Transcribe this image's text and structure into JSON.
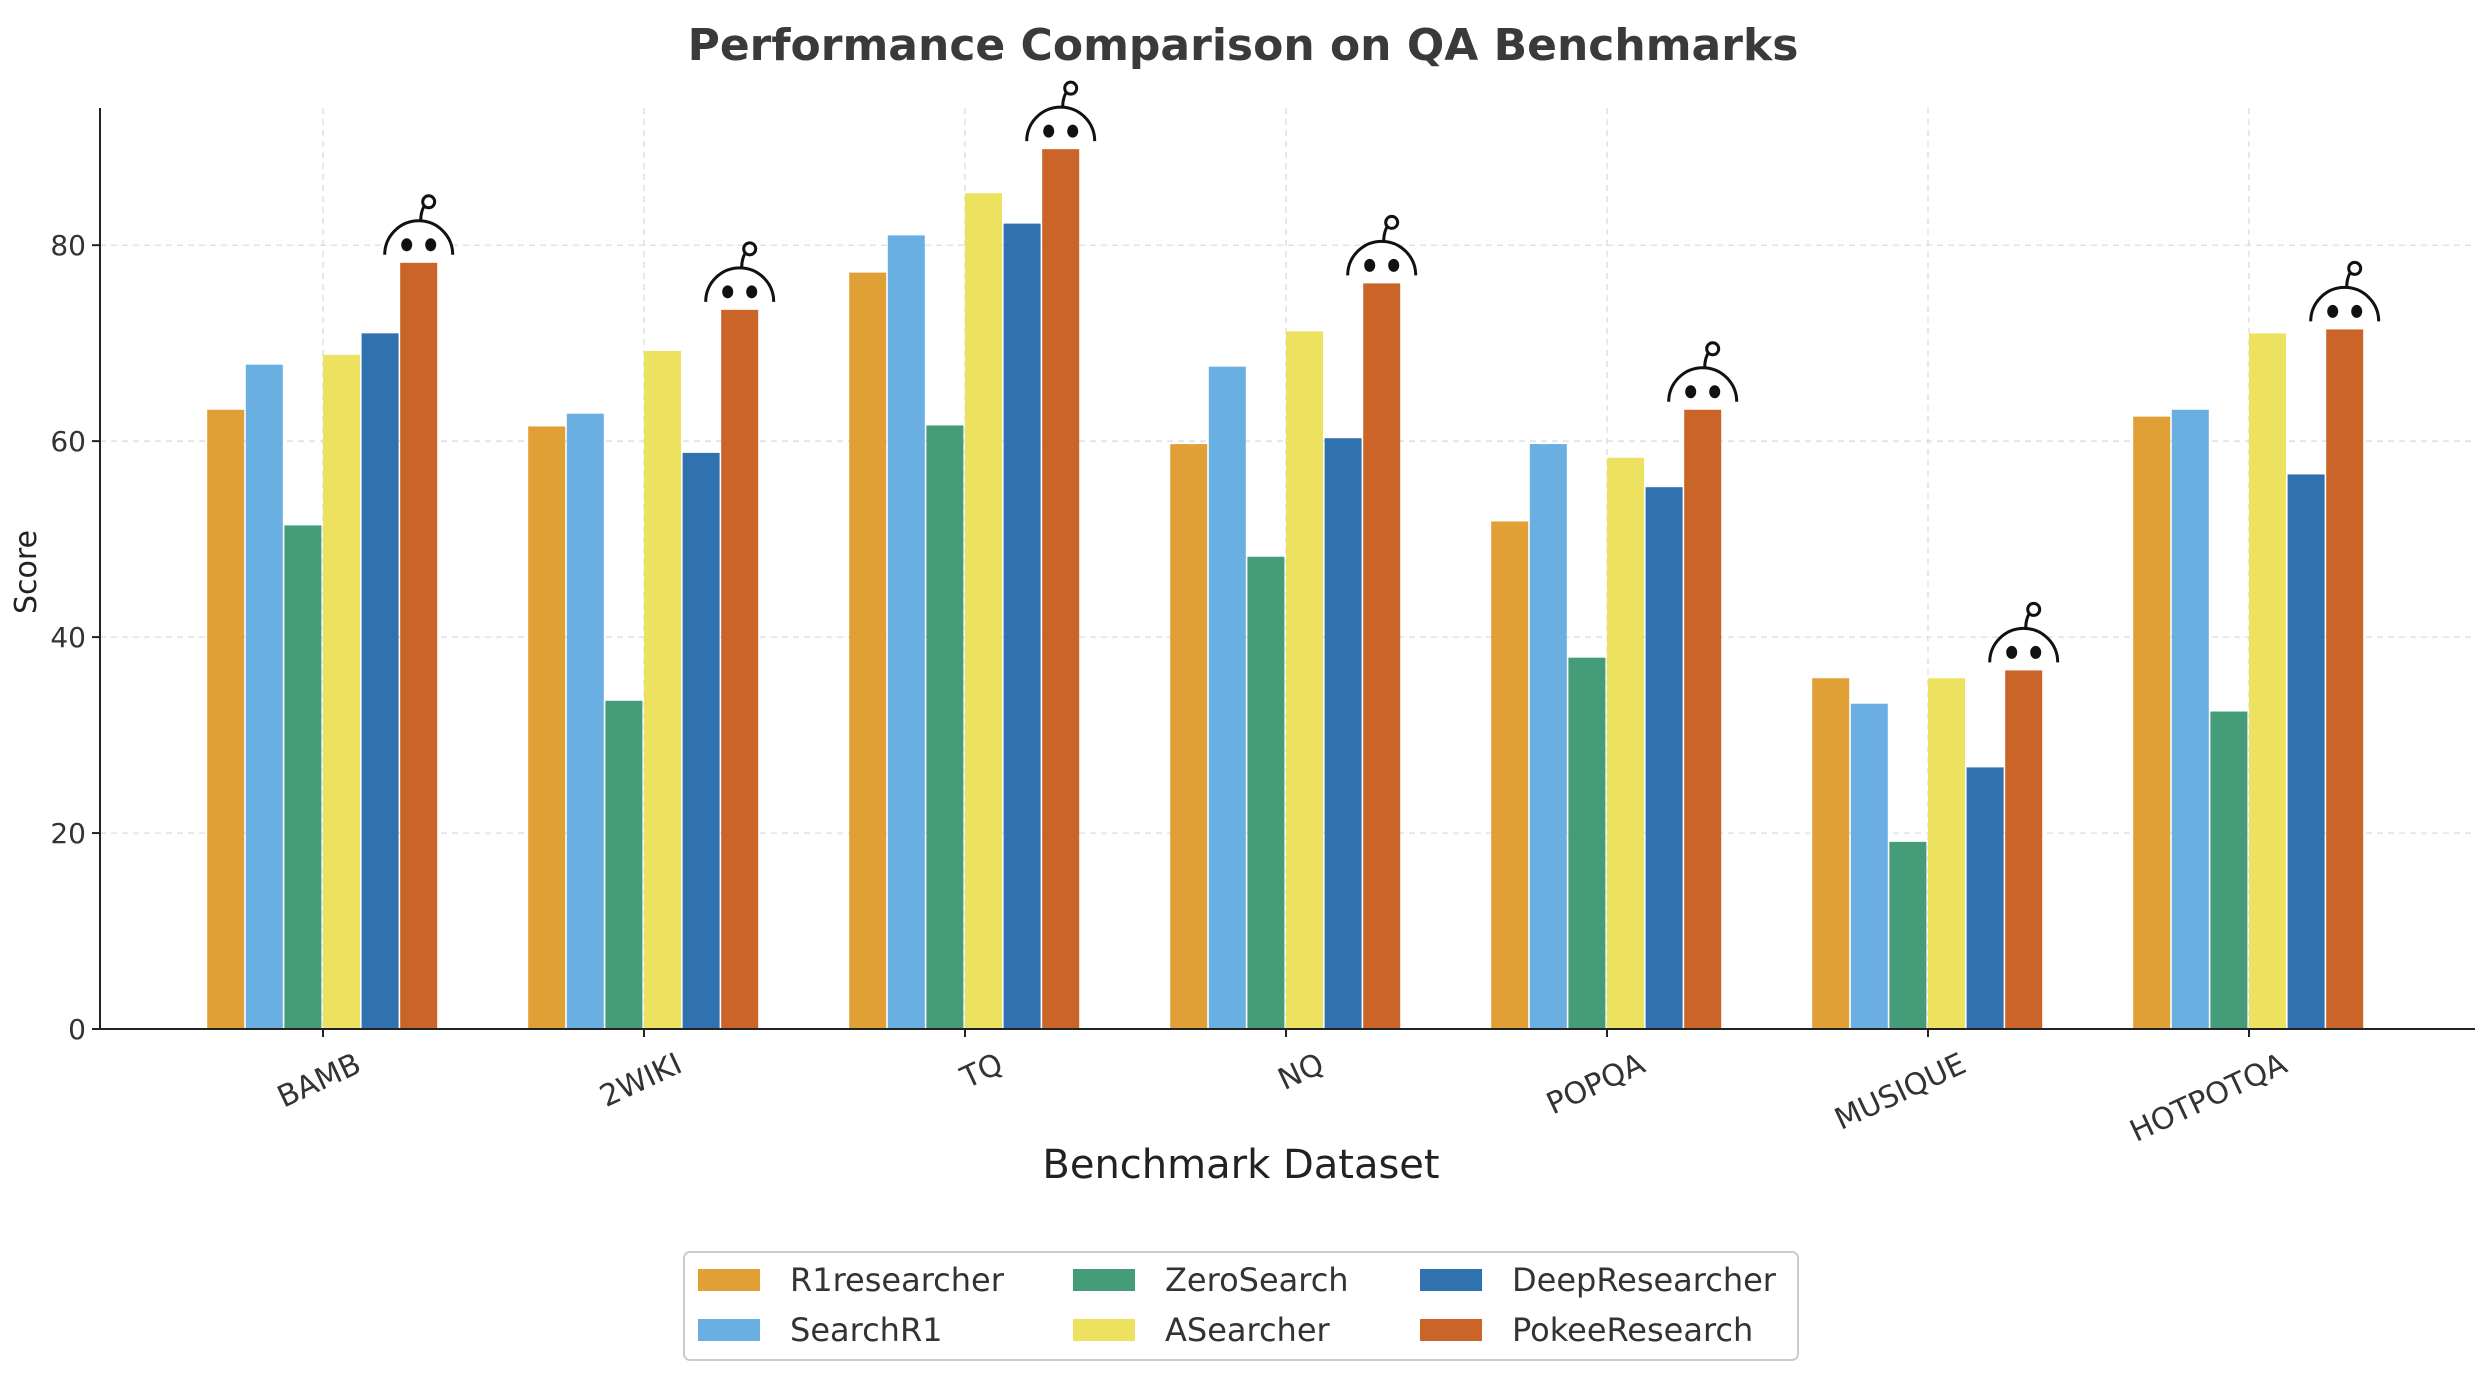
{
  "chart_data": {
    "type": "bar",
    "title": "Performance Comparison on QA Benchmarks",
    "xlabel": "Benchmark Dataset",
    "ylabel": "Score",
    "ylim": [
      0,
      94
    ],
    "yticks": [
      0,
      20,
      40,
      60,
      80
    ],
    "grid": true,
    "legend_position": "bottom-center",
    "categories": [
      "BAMB",
      "2WIKI",
      "TQ",
      "NQ",
      "POPQA",
      "MUSIQUE",
      "HOTPOTQA"
    ],
    "series": [
      {
        "name": "R1researcher",
        "color": "#E0A035",
        "values": [
          63.2,
          61.5,
          77.2,
          59.7,
          51.8,
          35.8,
          62.5
        ]
      },
      {
        "name": "SearchR1",
        "color": "#6AAFE2",
        "values": [
          67.8,
          62.8,
          81.0,
          67.6,
          59.7,
          33.2,
          63.2
        ]
      },
      {
        "name": "ZeroSearch",
        "color": "#459C78",
        "values": [
          51.4,
          33.5,
          61.6,
          48.2,
          37.9,
          19.1,
          32.4
        ]
      },
      {
        "name": "ASearcher",
        "color": "#EDE160",
        "values": [
          68.8,
          69.2,
          85.3,
          71.2,
          58.3,
          35.8,
          71.0
        ]
      },
      {
        "name": "DeepResearcher",
        "color": "#2F72AF",
        "values": [
          71.0,
          58.8,
          82.2,
          60.3,
          55.3,
          26.7,
          56.6
        ]
      },
      {
        "name": "PokeeResearch",
        "color": "#CB6429",
        "values": [
          78.2,
          73.4,
          89.8,
          76.1,
          63.2,
          36.6,
          71.4
        ]
      }
    ],
    "annotations": {
      "icon": "mascot-face-icon",
      "on_series": "PokeeResearch"
    }
  }
}
